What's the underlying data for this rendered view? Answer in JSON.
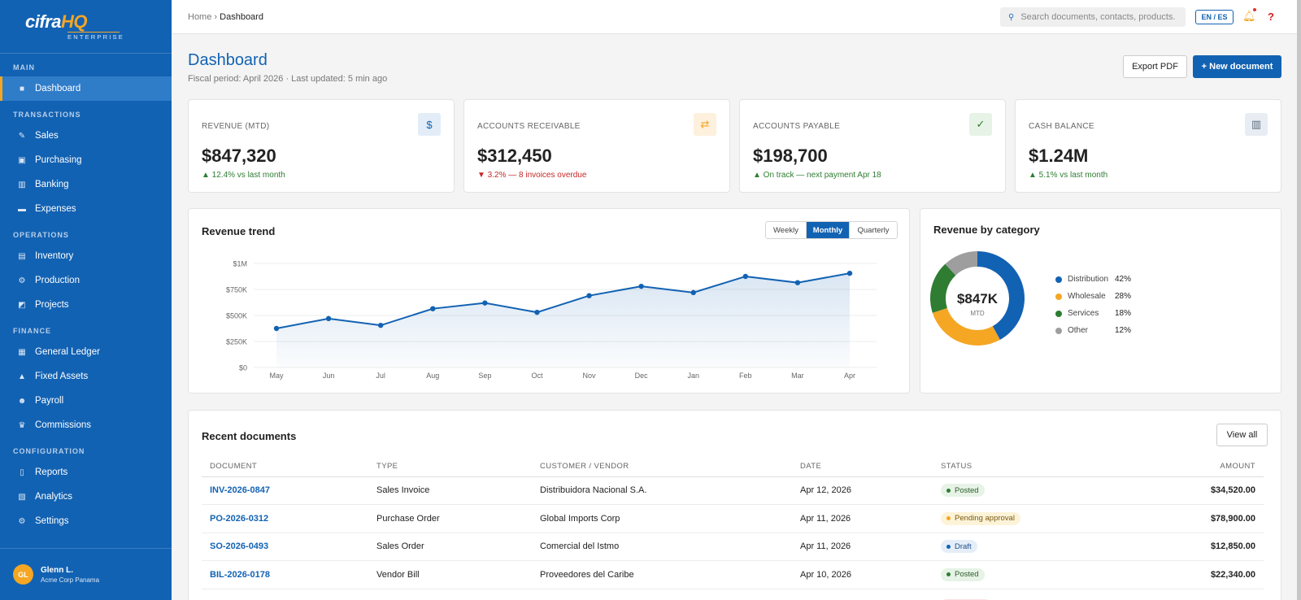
{
  "sidebar": {
    "logo_main": "cifra",
    "logo_hq": "HQ",
    "logo_sub": "ENTERPRISE",
    "sections": [
      {
        "title": "MAIN",
        "items": [
          {
            "label": "Dashboard",
            "icon": "square-icon",
            "glyph": "■",
            "active": true
          }
        ]
      },
      {
        "title": "TRANSACTIONS",
        "items": [
          {
            "label": "Sales",
            "icon": "pencil-icon",
            "glyph": "✎"
          },
          {
            "label": "Purchasing",
            "icon": "package-icon",
            "glyph": "▣"
          },
          {
            "label": "Banking",
            "icon": "bank-icon",
            "glyph": "▥"
          },
          {
            "label": "Expenses",
            "icon": "card-icon",
            "glyph": "▬"
          }
        ]
      },
      {
        "title": "OPERATIONS",
        "items": [
          {
            "label": "Inventory",
            "icon": "box-icon",
            "glyph": "▤"
          },
          {
            "label": "Production",
            "icon": "gear-icon",
            "glyph": "⚙"
          },
          {
            "label": "Projects",
            "icon": "chart-icon",
            "glyph": "◩"
          }
        ]
      },
      {
        "title": "FINANCE",
        "items": [
          {
            "label": "General Ledger",
            "icon": "books-icon",
            "glyph": "▦"
          },
          {
            "label": "Fixed Assets",
            "icon": "building-icon",
            "glyph": "▲"
          },
          {
            "label": "Payroll",
            "icon": "people-icon",
            "glyph": "☻"
          },
          {
            "label": "Commissions",
            "icon": "trophy-icon",
            "glyph": "♛"
          }
        ]
      },
      {
        "title": "CONFIGURATION",
        "items": [
          {
            "label": "Reports",
            "icon": "document-icon",
            "glyph": "▯"
          },
          {
            "label": "Analytics",
            "icon": "bar-chart-icon",
            "glyph": "▧"
          },
          {
            "label": "Settings",
            "icon": "gear-icon",
            "glyph": "⚙"
          }
        ]
      }
    ],
    "user": {
      "initials": "GL",
      "name": "Glenn L.",
      "company": "Acme Corp Panama"
    }
  },
  "topbar": {
    "breadcrumb_home": "Home",
    "breadcrumb_sep": "›",
    "breadcrumb_current": "Dashboard",
    "search_placeholder": "Search documents, contacts, products...",
    "lang": "EN / ES",
    "bell_icon": "bell-icon",
    "help_icon": "help-icon"
  },
  "page": {
    "title": "Dashboard",
    "subtitle": "Fiscal period: April 2026 · Last updated: 5 min ago",
    "export_label": "Export PDF",
    "new_label": "+ New document"
  },
  "kpis": [
    {
      "label": "REVENUE (MTD)",
      "value": "$847,320",
      "trend": "▲ 12.4% vs last month",
      "dir": "up",
      "icon": "dollar-icon",
      "glyph": "$",
      "icon_bg": "#e3edf8",
      "icon_color": "#1262b3"
    },
    {
      "label": "ACCOUNTS RECEIVABLE",
      "value": "$312,450",
      "trend": "▼ 3.2% — 8 invoices overdue",
      "dir": "down",
      "icon": "exchange-icon",
      "glyph": "⇄",
      "icon_bg": "#fdf0dd",
      "icon_color": "#f5a623"
    },
    {
      "label": "ACCOUNTS PAYABLE",
      "value": "$198,700",
      "trend": "▲ On track — next payment Apr 18",
      "dir": "up",
      "icon": "check-icon",
      "glyph": "✓",
      "icon_bg": "#e6f3e6",
      "icon_color": "#2e7d32"
    },
    {
      "label": "CASH BALANCE",
      "value": "$1.24M",
      "trend": "▲ 5.1% vs last month",
      "dir": "up",
      "icon": "bank-icon",
      "glyph": "▥",
      "icon_bg": "#e8edf3",
      "icon_color": "#5a6b7d"
    }
  ],
  "revenue_trend": {
    "title": "Revenue trend",
    "ranges": [
      "Weekly",
      "Monthly",
      "Quarterly"
    ],
    "selected_range": "Monthly"
  },
  "revenue_category": {
    "title": "Revenue by category",
    "center_value": "$847K",
    "center_label": "MTD"
  },
  "chart_data": [
    {
      "type": "area",
      "title": "Revenue trend",
      "categories": [
        "May",
        "Jun",
        "Jul",
        "Aug",
        "Sep",
        "Oct",
        "Nov",
        "Dec",
        "Jan",
        "Feb",
        "Mar",
        "Apr"
      ],
      "values": [
        375000,
        470000,
        405000,
        565000,
        620000,
        530000,
        690000,
        780000,
        720000,
        875000,
        815000,
        905000
      ],
      "ylim": [
        0,
        1000000
      ],
      "yticks": [
        0,
        250000,
        500000,
        750000,
        1000000
      ],
      "ytick_labels": [
        "$0",
        "$250K",
        "$500K",
        "$750K",
        "$1M"
      ],
      "color": "#1262b3",
      "grid": true
    },
    {
      "type": "pie",
      "title": "Revenue by category",
      "categories": [
        "Distribution",
        "Wholesale",
        "Services",
        "Other"
      ],
      "values": [
        42,
        28,
        18,
        12
      ],
      "labels": [
        "42%",
        "28%",
        "18%",
        "12%"
      ],
      "colors": [
        "#1262b3",
        "#f5a623",
        "#2e7d32",
        "#9e9e9e"
      ],
      "legend": "right"
    }
  ],
  "recent_docs": {
    "title": "Recent documents",
    "view_all": "View all",
    "columns": [
      "DOCUMENT",
      "TYPE",
      "CUSTOMER / VENDOR",
      "DATE",
      "STATUS",
      "AMOUNT"
    ],
    "rows": [
      {
        "doc": "INV-2026-0847",
        "type": "Sales Invoice",
        "party": "Distribuidora Nacional S.A.",
        "date": "Apr 12, 2026",
        "status": "Posted",
        "status_kind": "posted",
        "amount": "$34,520.00"
      },
      {
        "doc": "PO-2026-0312",
        "type": "Purchase Order",
        "party": "Global Imports Corp",
        "date": "Apr 11, 2026",
        "status": "Pending approval",
        "status_kind": "pending",
        "amount": "$78,900.00"
      },
      {
        "doc": "SO-2026-0493",
        "type": "Sales Order",
        "party": "Comercial del Istmo",
        "date": "Apr 11, 2026",
        "status": "Draft",
        "status_kind": "draft",
        "amount": "$12,850.00"
      },
      {
        "doc": "BIL-2026-0178",
        "type": "Vendor Bill",
        "party": "Proveedores del Caribe",
        "date": "Apr 10, 2026",
        "status": "Posted",
        "status_kind": "posted",
        "amount": "$22,340.00"
      }
    ]
  }
}
